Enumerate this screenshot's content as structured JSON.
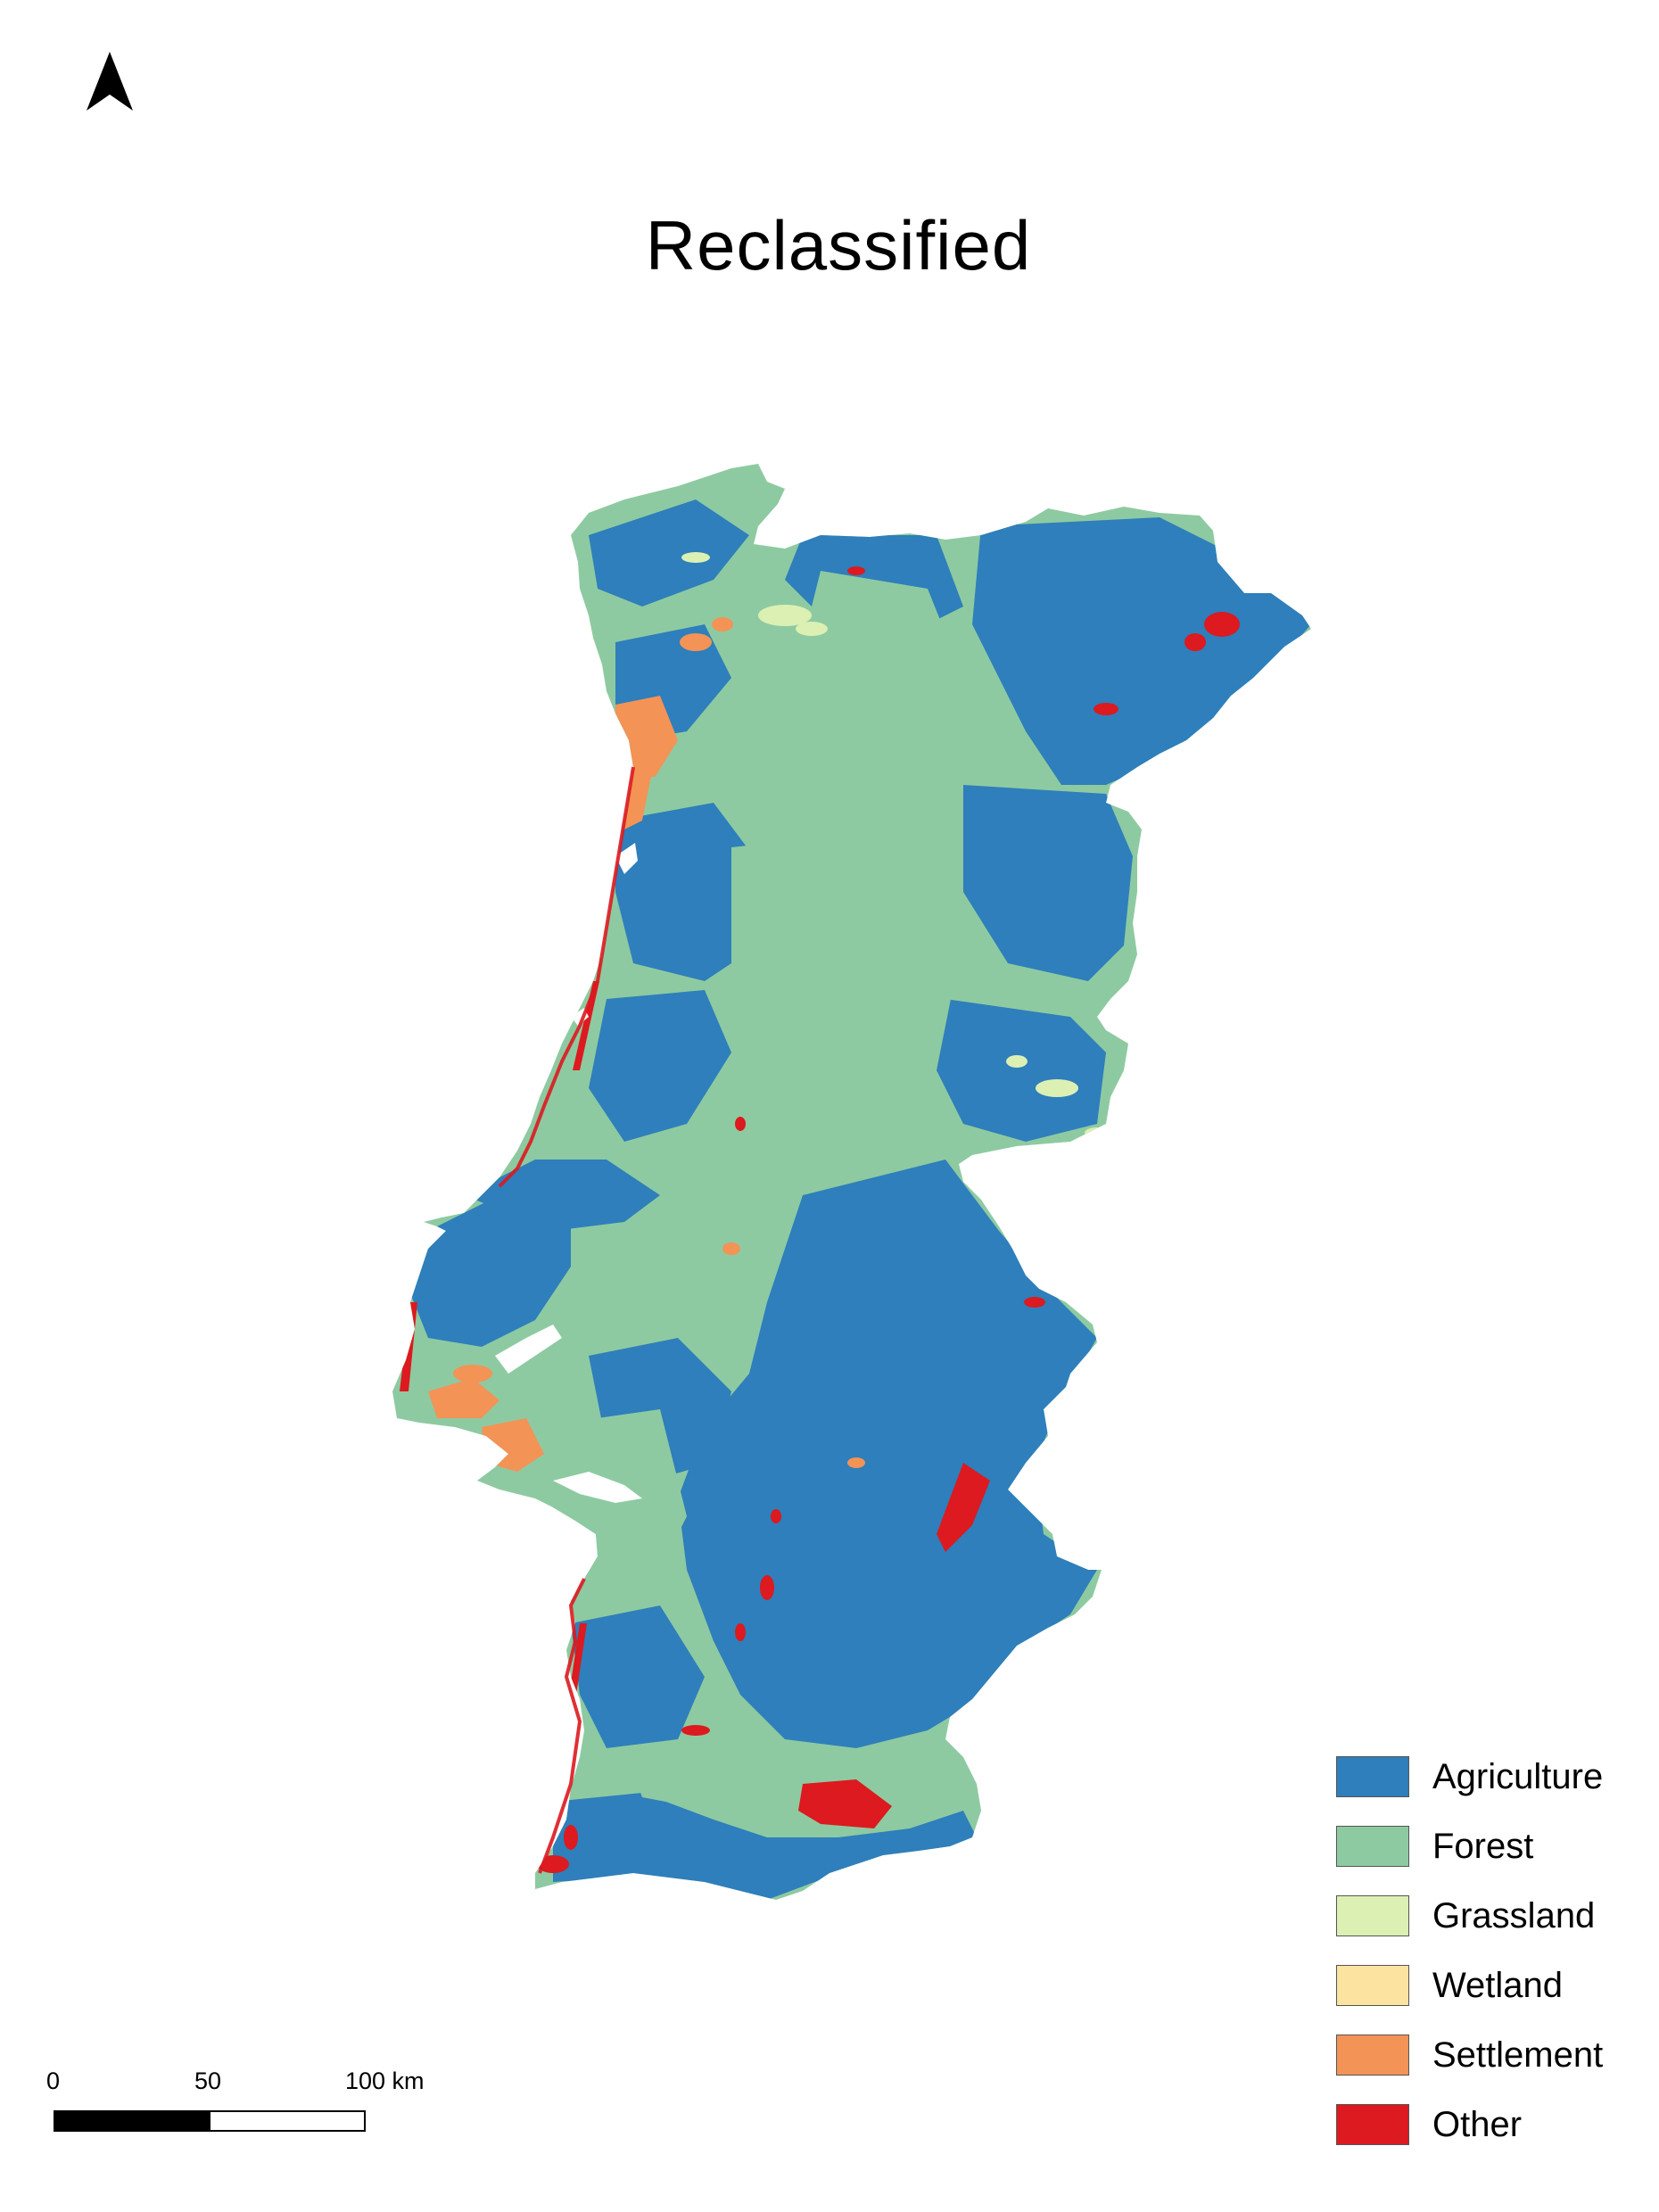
{
  "title": "Reclassified",
  "north_arrow": {
    "icon": "north-arrow-icon"
  },
  "legend": {
    "items": [
      {
        "label": "Agriculture",
        "color": "#2e7fbb"
      },
      {
        "label": "Forest",
        "color": "#8ecaa1"
      },
      {
        "label": "Grassland",
        "color": "#dcf0b4"
      },
      {
        "label": "Wetland",
        "color": "#fde3a0"
      },
      {
        "label": "Settlement",
        "color": "#f39356"
      },
      {
        "label": "Other",
        "color": "#dc1a1f"
      }
    ]
  },
  "scale_bar": {
    "labels": [
      "0",
      "50",
      "100 km"
    ],
    "colors": {
      "filled": "#000000",
      "empty": "#ffffff"
    }
  }
}
